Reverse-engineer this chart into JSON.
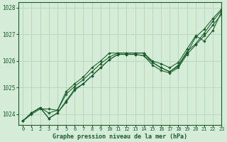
{
  "title": "Graphe pression niveau de la mer (hPa)",
  "background_color": "#d5ecd8",
  "grid_color": "#b8d9be",
  "line_color": "#1a5c2a",
  "xlim": [
    -0.5,
    23
  ],
  "ylim": [
    1023.6,
    1028.2
  ],
  "yticks": [
    1024,
    1025,
    1026,
    1027,
    1028
  ],
  "xticks": [
    0,
    1,
    2,
    3,
    4,
    5,
    6,
    7,
    8,
    9,
    10,
    11,
    12,
    13,
    14,
    15,
    16,
    17,
    18,
    19,
    20,
    21,
    22,
    23
  ],
  "series": [
    [
      1023.75,
      1024.0,
      1024.2,
      1024.2,
      1024.15,
      1024.85,
      1025.15,
      1025.4,
      1025.75,
      1026.0,
      1026.3,
      1026.3,
      1026.3,
      1026.3,
      1026.3,
      1026.0,
      1025.9,
      1025.75,
      1025.95,
      1026.45,
      1026.95,
      1026.75,
      1027.15,
      1027.85
    ],
    [
      1023.75,
      1024.05,
      1024.25,
      1024.05,
      1024.15,
      1024.75,
      1025.05,
      1025.3,
      1025.6,
      1025.9,
      1026.15,
      1026.3,
      1026.3,
      1026.3,
      1026.3,
      1025.95,
      1025.75,
      1025.6,
      1025.85,
      1026.35,
      1026.65,
      1027.05,
      1027.5,
      1027.9
    ],
    [
      1023.75,
      1024.05,
      1024.25,
      1023.85,
      1024.05,
      1024.5,
      1024.95,
      1025.15,
      1025.45,
      1025.75,
      1026.05,
      1026.25,
      1026.25,
      1026.25,
      1026.2,
      1025.95,
      1025.75,
      1025.6,
      1025.8,
      1026.3,
      1026.9,
      1027.2,
      1027.6,
      1027.95
    ],
    [
      1023.75,
      1024.05,
      1024.25,
      1023.85,
      1024.05,
      1024.45,
      1024.9,
      1025.15,
      1025.45,
      1025.75,
      1026.05,
      1026.25,
      1026.25,
      1026.25,
      1026.2,
      1025.85,
      1025.65,
      1025.55,
      1025.75,
      1026.25,
      1026.6,
      1026.95,
      1027.35,
      1027.75
    ]
  ],
  "ylabel_fontsize": 5.5,
  "xlabel_fontsize": 6.0,
  "tick_fontsize": 5.0
}
